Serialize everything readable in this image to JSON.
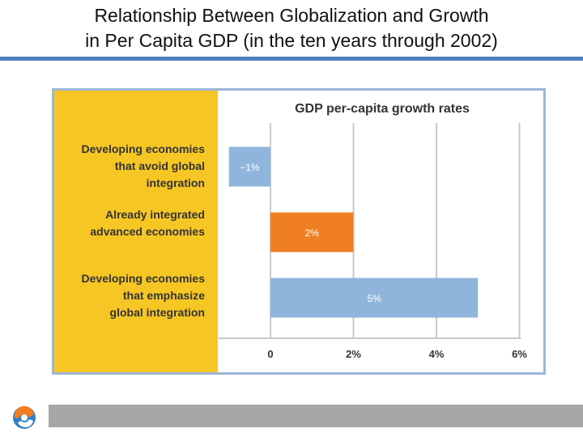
{
  "slide": {
    "title_line1": "Relationship Between Globalization and Growth",
    "title_line2": "in Per Capita GDP (in the ten years through 2002)"
  },
  "colors": {
    "title_rule": "#4f81bd",
    "frame": "#9db7d5",
    "label_panel": "#f6c624",
    "bar_blue": "#8fb5dc",
    "bar_orange": "#ef7f22",
    "grid": "#c9c9c9",
    "footer": "#a6a6a6"
  },
  "chart_data": {
    "type": "bar",
    "orientation": "horizontal",
    "title": "GDP per-capita growth rates",
    "categories": [
      [
        "Developing economies",
        "that avoid global",
        "integration"
      ],
      [
        "Already integrated",
        "advanced economies"
      ],
      [
        "Developing economies",
        "that emphasize",
        "global integration"
      ]
    ],
    "values": [
      -1,
      2,
      5
    ],
    "value_labels": [
      "−1%",
      "2%",
      "5%"
    ],
    "bar_colors": [
      "#8fb5dc",
      "#ef7f22",
      "#8fb5dc"
    ],
    "xlim": [
      -1,
      6
    ],
    "xticks": [
      0,
      2,
      4,
      6
    ],
    "xtick_labels": [
      "0",
      "2%",
      "4%",
      "6%"
    ],
    "unit": "%",
    "grid": true
  }
}
